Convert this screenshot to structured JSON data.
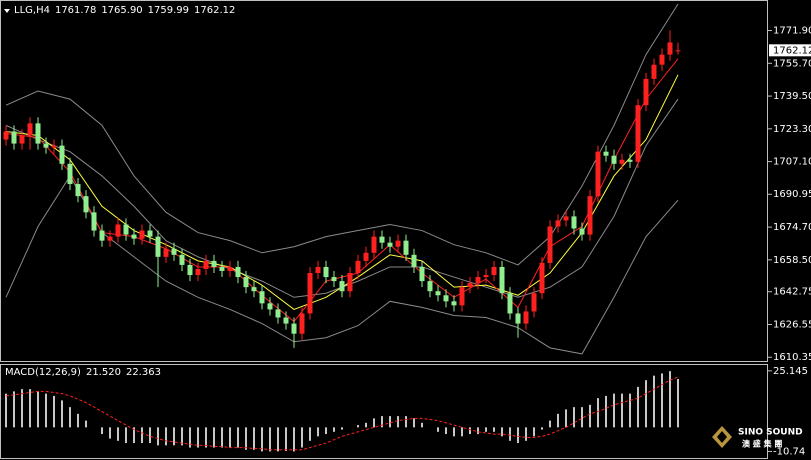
{
  "chart_data": [
    {
      "type": "candlestick",
      "title": "LLG,H4",
      "readout": [
        1761.78,
        {
          "value": 1765.9,
          "label": "1765.90"
        },
        1759.99,
        1762.12
      ],
      "current_price": 1762.12,
      "colors": {
        "up": "#ff2020",
        "down": "#90ee90",
        "flat": "#ffffff"
      },
      "open": [
        1718,
        1722,
        1716,
        1720,
        1726,
        1716,
        1714,
        1715,
        1706,
        1696,
        1690,
        1682,
        1673,
        1668,
        1670,
        1676,
        1671,
        1669,
        1673,
        1670,
        1660,
        1664,
        1661,
        1656,
        1651,
        1654,
        1658,
        1655,
        1653,
        1655,
        1650,
        1645,
        1643,
        1637,
        1634,
        1630,
        1627,
        1622,
        1632,
        1652,
        1655,
        1650,
        1648,
        1643,
        1652,
        1658,
        1662,
        1670,
        1667,
        1665,
        1668,
        1661,
        1655,
        1648,
        1643,
        1641,
        1638,
        1636,
        1645,
        1647,
        1650,
        1651,
        1655,
        1642,
        1632,
        1627,
        1633,
        1642,
        1657,
        1675,
        1678,
        1680,
        1674,
        1671,
        1690,
        1712,
        1710,
        1706,
        1708,
        1707,
        1735,
        1748,
        1755,
        1760,
        1761.78
      ],
      "high": [
        1725,
        1725,
        1723,
        1729,
        1729,
        1719,
        1718,
        1718,
        1709,
        1699,
        1693,
        1685,
        1676,
        1673,
        1679,
        1679,
        1674,
        1676,
        1676,
        1673,
        1667,
        1667,
        1664,
        1659,
        1657,
        1661,
        1661,
        1658,
        1658,
        1658,
        1653,
        1648,
        1646,
        1640,
        1637,
        1633,
        1630,
        1635,
        1655,
        1658,
        1658,
        1653,
        1651,
        1655,
        1661,
        1665,
        1673,
        1673,
        1670,
        1671,
        1671,
        1664,
        1658,
        1651,
        1646,
        1644,
        1641,
        1648,
        1650,
        1653,
        1654,
        1658,
        1658,
        1645,
        1635,
        1636,
        1645,
        1660,
        1678,
        1681,
        1683,
        1683,
        1677,
        1693,
        1715,
        1715,
        1713,
        1711,
        1711,
        1738,
        1751,
        1758,
        1763,
        1772,
        1765.9
      ],
      "low": [
        1715,
        1713,
        1713,
        1713,
        1713,
        1711,
        1711,
        1703,
        1693,
        1687,
        1679,
        1670,
        1665,
        1665,
        1667,
        1668,
        1666,
        1666,
        1667,
        1645,
        1657,
        1658,
        1653,
        1648,
        1648,
        1651,
        1652,
        1650,
        1650,
        1647,
        1642,
        1640,
        1634,
        1631,
        1627,
        1624,
        1615,
        1619,
        1629,
        1649,
        1647,
        1645,
        1640,
        1640,
        1649,
        1655,
        1659,
        1664,
        1662,
        1662,
        1658,
        1652,
        1645,
        1640,
        1638,
        1635,
        1633,
        1633,
        1642,
        1644,
        1647,
        1648,
        1639,
        1629,
        1620,
        1624,
        1630,
        1639,
        1654,
        1672,
        1675,
        1671,
        1668,
        1668,
        1687,
        1707,
        1703,
        1703,
        1704,
        1704,
        1732,
        1745,
        1752,
        1757,
        1759.99
      ],
      "close": [
        1722,
        1716,
        1720,
        1726,
        1716,
        1714,
        1715,
        1706,
        1696,
        1690,
        1682,
        1673,
        1668,
        1670,
        1676,
        1671,
        1669,
        1673,
        1670,
        1660,
        1664,
        1661,
        1656,
        1651,
        1654,
        1658,
        1655,
        1653,
        1655,
        1650,
        1645,
        1643,
        1637,
        1634,
        1630,
        1627,
        1622,
        1632,
        1652,
        1655,
        1650,
        1648,
        1643,
        1652,
        1658,
        1662,
        1670,
        1667,
        1665,
        1668,
        1661,
        1655,
        1648,
        1643,
        1641,
        1638,
        1636,
        1645,
        1647,
        1650,
        1651,
        1655,
        1642,
        1632,
        1627,
        1633,
        1642,
        1657,
        1675,
        1678,
        1680,
        1674,
        1671,
        1690,
        1712,
        1710,
        1706,
        1708,
        1707,
        1735,
        1748,
        1755,
        1760,
        1766,
        1762.12
      ],
      "overlay_x": [
        0,
        4,
        8,
        12,
        16,
        20,
        24,
        28,
        32,
        36,
        40,
        44,
        48,
        52,
        56,
        60,
        64,
        68,
        72,
        76,
        80,
        84
      ],
      "overlays": [
        {
          "color": "#8a8a8a",
          "values": [
            1735,
            1742,
            1738,
            1725,
            1700,
            1682,
            1672,
            1668,
            1662,
            1665,
            1670,
            1673,
            1676,
            1673,
            1666,
            1662,
            1656,
            1670,
            1695,
            1725,
            1760,
            1785
          ]
        },
        {
          "color": "#8a8a8a",
          "values": [
            1725,
            1718,
            1712,
            1700,
            1685,
            1668,
            1660,
            1654,
            1648,
            1640,
            1642,
            1648,
            1655,
            1655,
            1650,
            1645,
            1640,
            1645,
            1655,
            1680,
            1715,
            1738
          ]
        },
        {
          "color": "#8a8a8a",
          "values": [
            1640,
            1675,
            1700,
            1672,
            1660,
            1648,
            1640,
            1634,
            1627,
            1618,
            1620,
            1626,
            1638,
            1635,
            1631,
            1630,
            1625,
            1615,
            1612,
            1640,
            1670,
            1688
          ]
        },
        {
          "color": "#ffff40",
          "values": [
            1722,
            1720,
            1708,
            1685,
            1673,
            1666,
            1658,
            1655,
            1646,
            1634,
            1640,
            1650,
            1661,
            1658,
            1645,
            1646,
            1641,
            1652,
            1672,
            1700,
            1718,
            1750
          ]
        },
        {
          "color": "#ff2020",
          "values": [
            1721,
            1719,
            1702,
            1672,
            1670,
            1664,
            1655,
            1655,
            1641,
            1628,
            1648,
            1652,
            1666,
            1652,
            1640,
            1649,
            1635,
            1665,
            1675,
            1708,
            1738,
            1758
          ]
        }
      ],
      "ylim": [
        1608,
        1787
      ],
      "yticks": [
        {
          "value": 1771.9,
          "label": "1771.90"
        },
        {
          "value": 1755.7,
          "label": "1755.70"
        },
        {
          "value": 1739.5,
          "label": "1739.50"
        },
        {
          "value": 1723.3,
          "label": "1723.30"
        },
        {
          "value": 1707.1,
          "label": "1707.10"
        },
        1690.95,
        {
          "value": 1674.7,
          "label": "1674.70"
        },
        {
          "value": 1658.5,
          "label": "1658.50"
        },
        1642.75,
        1626.55,
        1610.35
      ]
    },
    {
      "type": "macd",
      "title": "MACD(12,26,9)",
      "readout": [
        {
          "value": 21.52,
          "label": "21.520"
        },
        22.363
      ],
      "series": [
        {
          "type": "bar",
          "color": "#c8c8c8",
          "values": [
            15,
            16,
            17,
            17,
            16,
            15,
            14,
            12,
            9,
            6,
            3,
            0,
            -3,
            -5,
            -6,
            -7,
            -7,
            -7,
            -7,
            -8,
            -8,
            -8,
            -8,
            -9,
            -9,
            -9,
            -9,
            -9,
            -9,
            -9,
            -10,
            -10,
            -10.7,
            -10.7,
            -10.7,
            -10.5,
            -10.7,
            -9,
            -6,
            -4,
            -3,
            -2,
            -1,
            0,
            1,
            2,
            4,
            5,
            5,
            5,
            5,
            4,
            2,
            0,
            -2,
            -3,
            -4,
            -4,
            -3,
            -3,
            -2,
            -2,
            -4,
            -6,
            -7,
            -6,
            -4,
            -1,
            3,
            6,
            8,
            9,
            9,
            10,
            13,
            14,
            15,
            15,
            15,
            18,
            21,
            23,
            24,
            25,
            21.52
          ]
        },
        {
          "type": "line",
          "color": "#ff2020",
          "values": [
            14,
            14.5,
            15,
            15.5,
            16,
            16,
            15.5,
            15,
            14,
            12.5,
            11,
            9,
            7,
            5,
            3,
            1,
            -1,
            -2.5,
            -4,
            -5,
            -6,
            -6.5,
            -7,
            -7.5,
            -8,
            -8,
            -8.5,
            -8.5,
            -9,
            -9,
            -9,
            -9.5,
            -9.5,
            -10,
            -10,
            -10,
            -10,
            -10,
            -9,
            -8,
            -7,
            -5.5,
            -4,
            -3,
            -2,
            -1,
            0,
            1,
            2,
            3,
            3.5,
            4,
            4,
            3.5,
            3,
            2,
            1,
            0,
            -1,
            -2,
            -2.5,
            -3,
            -3,
            -3.5,
            -4,
            -4.5,
            -4.5,
            -4,
            -3,
            -1.5,
            0,
            2,
            4,
            6,
            7,
            8.5,
            10,
            11,
            12,
            13,
            15,
            17,
            19,
            21,
            22.363
          ]
        }
      ],
      "ylim": [
        -13.2,
        27.3
      ],
      "yticks": [
        25.145,
        -10.74
      ]
    }
  ],
  "watermark": {
    "text": "SINO SOUND",
    "sub": "澳 盛 集 團"
  }
}
